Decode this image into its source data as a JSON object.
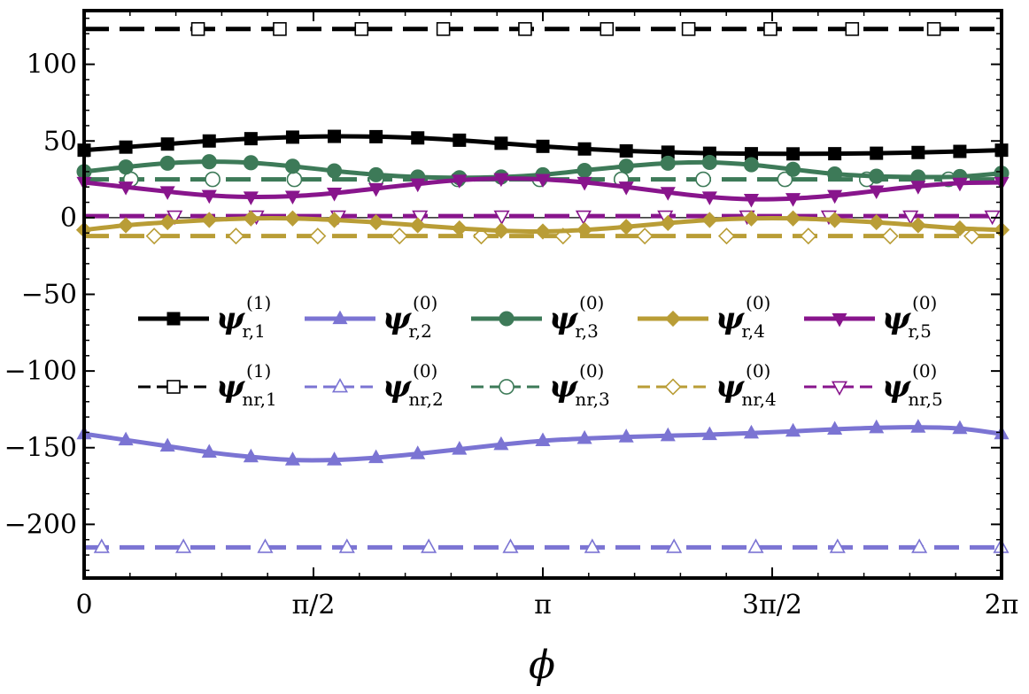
{
  "chart_data": {
    "type": "line",
    "title": "",
    "xlabel": "ϕ",
    "ylabel": "",
    "xlim": [
      0,
      6.2832
    ],
    "ylim": [
      -235,
      135
    ],
    "x_ticks": [
      {
        "value": 0,
        "label": "0"
      },
      {
        "value": 1.5708,
        "label": "π/2"
      },
      {
        "value": 3.1416,
        "label": "π"
      },
      {
        "value": 4.7124,
        "label": "3π/2"
      },
      {
        "value": 6.2832,
        "label": "2π"
      }
    ],
    "y_ticks": [
      {
        "value": 100,
        "label": "100"
      },
      {
        "value": 50,
        "label": "50"
      },
      {
        "value": 0,
        "label": "0"
      },
      {
        "value": -50,
        "label": "−50"
      },
      {
        "value": -100,
        "label": "−100"
      },
      {
        "value": -150,
        "label": "−150"
      },
      {
        "value": -200,
        "label": "−200"
      }
    ],
    "phi_samples": [
      0,
      0.2856,
      0.5712,
      0.8568,
      1.1424,
      1.428,
      1.7136,
      1.9992,
      2.2848,
      2.5704,
      2.856,
      3.1416,
      3.4272,
      3.7128,
      3.9984,
      4.284,
      4.5696,
      4.8552,
      5.1408,
      5.4264,
      5.712,
      5.9976,
      6.2832
    ],
    "series": [
      {
        "name": "psi_r1",
        "sym": "ψ",
        "sub": "r,1",
        "sup": "(1)",
        "kind": "resonant",
        "color": "#000000",
        "marker": "square",
        "values": [
          44,
          46,
          48,
          50,
          51.5,
          52.5,
          53,
          52.8,
          52,
          50.5,
          48.5,
          46.5,
          44.8,
          43.5,
          42.7,
          42,
          41.7,
          41.6,
          41.7,
          42,
          42.5,
          43.2,
          44
        ]
      },
      {
        "name": "psi_r2",
        "sym": "ψ",
        "sub": "r,2",
        "sup": "(0)",
        "kind": "resonant",
        "color": "#7b74d3",
        "marker": "triangle-up",
        "values": [
          -141,
          -145,
          -149,
          -153,
          -156,
          -158,
          -158,
          -156.5,
          -154,
          -151,
          -148,
          -145.5,
          -144,
          -143,
          -142.2,
          -141.5,
          -140.5,
          -139.3,
          -138,
          -137,
          -136.7,
          -137.5,
          -141
        ]
      },
      {
        "name": "psi_r3",
        "sym": "ψ",
        "sub": "r,3",
        "sup": "(0)",
        "kind": "resonant",
        "color": "#3d7a58",
        "marker": "circle",
        "values": [
          30,
          33,
          35.5,
          36.5,
          35.8,
          33.5,
          30.5,
          28,
          26.5,
          26,
          26.5,
          28,
          30.8,
          33.5,
          35.5,
          36,
          34.5,
          31.5,
          28.5,
          27,
          26.5,
          26.8,
          29
        ]
      },
      {
        "name": "psi_r4",
        "sym": "ψ",
        "sub": "r,4",
        "sup": "(0)",
        "kind": "resonant",
        "color": "#b99d36",
        "marker": "diamond",
        "values": [
          -8,
          -5,
          -3,
          -1.5,
          -0.5,
          -0.5,
          -1.5,
          -3,
          -5,
          -7,
          -8.5,
          -9,
          -8,
          -6,
          -3.5,
          -1.5,
          -0.5,
          -0.5,
          -1.5,
          -3,
          -5,
          -7,
          -8
        ]
      },
      {
        "name": "psi_r5",
        "sym": "ψ",
        "sub": "r,5",
        "sup": "(0)",
        "kind": "resonant",
        "color": "#88158c",
        "marker": "triangle-down",
        "values": [
          23,
          20,
          17,
          14.5,
          13.5,
          14,
          16,
          19,
          22,
          24.5,
          25.5,
          25,
          23,
          20,
          16.5,
          13.5,
          12,
          12.5,
          14.5,
          17.5,
          20.5,
          22.5,
          23
        ]
      },
      {
        "name": "psi_nr1",
        "sym": "ψ",
        "sub": "nr,1",
        "sup": "(1)",
        "kind": "nonresonant",
        "color": "#000000",
        "marker": "square-open",
        "values": [
          123,
          123,
          123,
          123,
          123,
          123,
          123,
          123,
          123,
          123,
          123,
          123,
          123,
          123,
          123,
          123,
          123,
          123,
          123,
          123,
          123,
          123,
          123
        ]
      },
      {
        "name": "psi_nr2",
        "sym": "ψ",
        "sub": "nr,2",
        "sup": "(0)",
        "kind": "nonresonant",
        "color": "#7b74d3",
        "marker": "triangle-up-open",
        "values": [
          -215,
          -215,
          -215,
          -215,
          -215,
          -215,
          -215,
          -215,
          -215,
          -215,
          -215,
          -215,
          -215,
          -215,
          -215,
          -215,
          -215,
          -215,
          -215,
          -215,
          -215,
          -215,
          -215
        ]
      },
      {
        "name": "psi_nr3",
        "sym": "ψ",
        "sub": "nr,3",
        "sup": "(0)",
        "kind": "nonresonant",
        "color": "#3d7a58",
        "marker": "circle-open",
        "values": [
          25,
          25,
          25,
          25,
          25,
          25,
          25,
          25,
          25,
          25,
          25,
          25,
          25,
          25,
          25,
          25,
          25,
          25,
          25,
          25,
          25,
          25,
          25
        ]
      },
      {
        "name": "psi_nr4",
        "sym": "ψ",
        "sub": "nr,4",
        "sup": "(0)",
        "kind": "nonresonant",
        "color": "#b99d36",
        "marker": "diamond-open",
        "values": [
          -12,
          -12,
          -12,
          -12,
          -12,
          -12,
          -12,
          -12,
          -12,
          -12,
          -12,
          -12,
          -12,
          -12,
          -12,
          -12,
          -12,
          -12,
          -12,
          -12,
          -12,
          -12,
          -12
        ]
      },
      {
        "name": "psi_nr5",
        "sym": "ψ",
        "sub": "nr,5",
        "sup": "(0)",
        "kind": "nonresonant",
        "color": "#88158c",
        "marker": "triangle-down-open",
        "values": [
          1,
          1,
          1,
          1,
          1,
          1,
          1,
          1,
          1,
          1,
          1,
          1,
          1,
          1,
          1,
          1,
          1,
          1,
          1,
          1,
          1,
          1,
          1
        ]
      }
    ],
    "legend_position": "center-left, two rows",
    "grid": false
  }
}
